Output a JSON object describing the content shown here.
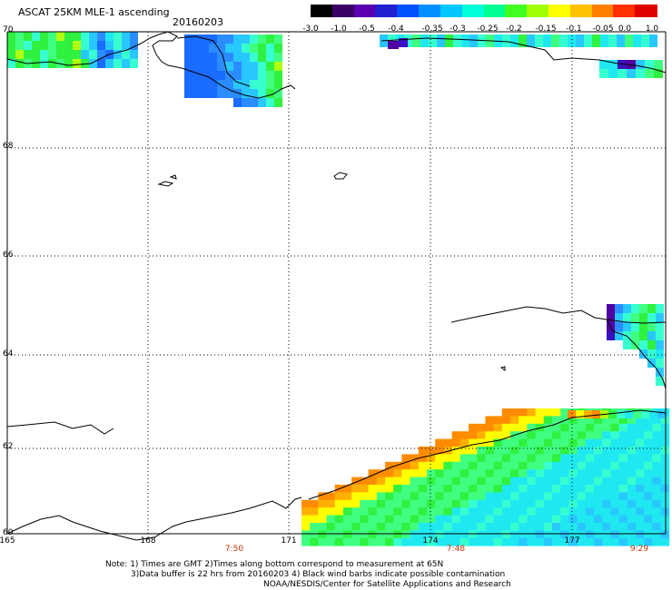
{
  "header": {
    "title": "ASCAT 25KM MLE-1 ascending",
    "date": "20160203"
  },
  "colorbar": {
    "labels": [
      "-3.0",
      "-1.0",
      "-0.5",
      "-0.4",
      "-0.35",
      "-0.3",
      "-0.25",
      "-0.2",
      "-0.15",
      "-0.1",
      "-0.05",
      "0.0",
      "1.0"
    ],
    "colors": [
      "#000000",
      "#3a0066",
      "#5a00b0",
      "#2020d0",
      "#0050ff",
      "#0090ff",
      "#00c8ff",
      "#00ffd8",
      "#00ff90",
      "#40ff20",
      "#a0ff00",
      "#ffff00",
      "#ffc000",
      "#ff8000",
      "#ff3000",
      "#e00000"
    ]
  },
  "map": {
    "lat_labels": [
      "70",
      "68",
      "66",
      "64",
      "62",
      "60"
    ],
    "lon_labels": [
      "165",
      "168",
      "171",
      "174",
      "177"
    ],
    "time_labels": [
      "7:50",
      "7:48",
      "9:29"
    ]
  },
  "footer": {
    "line1": "Note: 1) Times are GMT 2)Times along bottom correspond to measurement at 65N",
    "line2": "3)Data buffer is 22 hrs from 20160203 4) Black wind barbs indicate possible contamination",
    "line3": "NOAA/NESDIS/Center for Satellite Applications and Research"
  }
}
